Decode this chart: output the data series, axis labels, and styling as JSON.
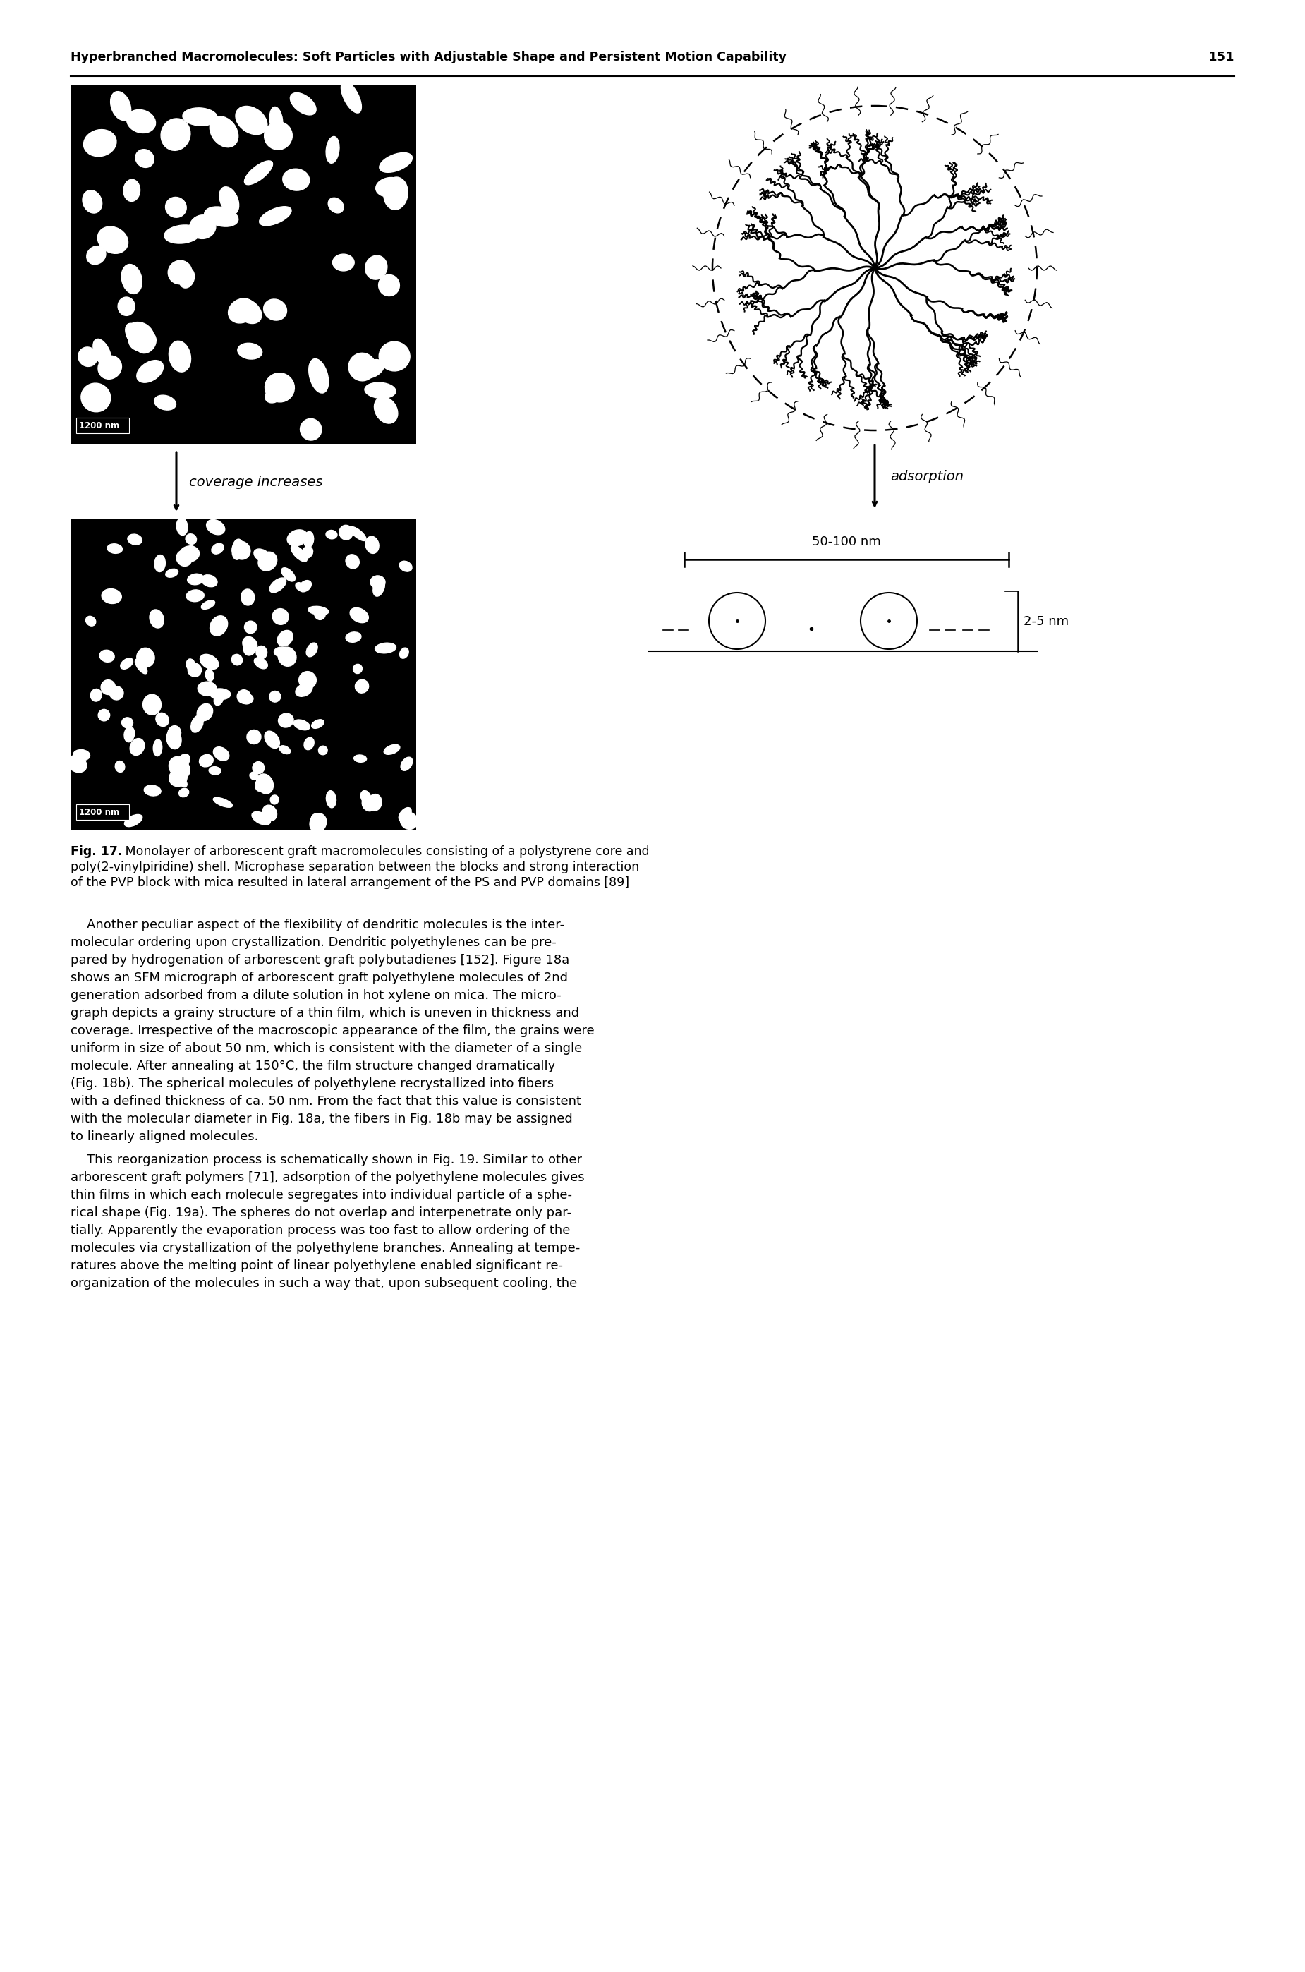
{
  "header_text": "Hyperbranched Macromolecules: Soft Particles with Adjustable Shape and Persistent Motion Capability",
  "header_page": "151",
  "fig_caption_bold": "Fig. 17.",
  "fig_caption_line1": " Monolayer of arborescent graft macromolecules consisting of a polystyrene core and",
  "fig_caption_line2": "poly(2-vinylpiridine) shell. Microphase separation between the blocks and strong interaction",
  "fig_caption_line3": "of the PVP block with mica resulted in lateral arrangement of the PS and PVP domains [89]",
  "label_coverage": "coverage increases",
  "label_adsorption": "adsorption",
  "label_scale_top": "50-100 nm",
  "label_scale_bottom": "2-5 nm",
  "label_scale_bar1": "1200 nm",
  "label_scale_bar2": "1200 nm",
  "para1_lines": [
    "    Another peculiar aspect of the flexibility of dendritic molecules is the inter-",
    "molecular ordering upon crystallization. Dendritic polyethylenes can be pre-",
    "pared by hydrogenation of arborescent graft polybutadienes [152]. Figure 18a",
    "shows an SFM micrograph of arborescent graft polyethylene molecules of 2nd",
    "generation adsorbed from a dilute solution in hot xylene on mica. The micro-",
    "graph depicts a grainy structure of a thin film, which is uneven in thickness and",
    "coverage. Irrespective of the macroscopic appearance of the film, the grains were",
    "uniform in size of about 50 nm, which is consistent with the diameter of a single",
    "molecule. After annealing at 150°C, the film structure changed dramatically",
    "(Fig. 18b). The spherical molecules of polyethylene recrystallized into fibers",
    "with a defined thickness of ca. 50 nm. From the fact that this value is consistent",
    "with the molecular diameter in Fig. 18a, the fibers in Fig. 18b may be assigned",
    "to linearly aligned molecules."
  ],
  "para2_lines": [
    "    This reorganization process is schematically shown in Fig. 19. Similar to other",
    "arborescent graft polymers [71], adsorption of the polyethylene molecules gives",
    "thin films in which each molecule segregates into individual particle of a sphe-",
    "rical shape (Fig. 19a). The spheres do not overlap and interpenetrate only par-",
    "tially. Apparently the evaporation process was too fast to allow ordering of the",
    "molecules via crystallization of the polyethylene branches. Annealing at tempe-",
    "ratures above the melting point of linear polyethylene enabled significant re-",
    "organization of the molecules in such a way that, upon subsequent cooling, the"
  ],
  "bg_color": "#ffffff"
}
